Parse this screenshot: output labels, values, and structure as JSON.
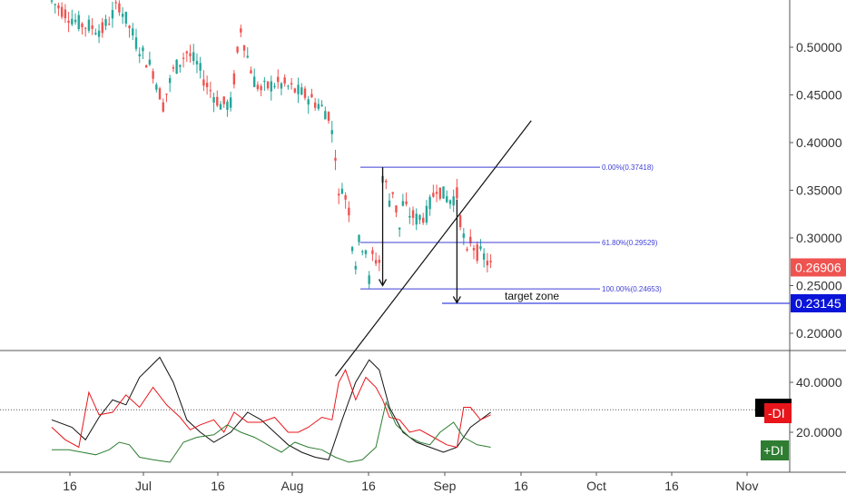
{
  "colors": {
    "up": "#26a69a",
    "down": "#ef5350",
    "fib": "#3f3fd6",
    "price_badge": "#ef5350",
    "target_badge": "#0a14d8",
    "plus_di": "#2e7d32",
    "minus_di": "#e8161b",
    "adx": "#111111",
    "grid_text": "#333333"
  },
  "chart_data": [
    {
      "type": "candlestick",
      "x_axis": {
        "ticks": [
          "16",
          "Jul",
          "16",
          "Aug",
          "16",
          "Sep",
          "16",
          "Oct",
          "16",
          "Nov"
        ]
      },
      "y_axis": {
        "ticks": [
          "0.50000",
          "0.45000",
          "0.40000",
          "0.35000",
          "0.30000",
          "0.25000",
          "0.20000"
        ],
        "ylim": [
          0.165,
          0.548
        ]
      },
      "last_price": "0.26906",
      "target_price": "0.23145",
      "fibonacci": [
        {
          "label": "0.00%(0.37418)",
          "value": 0.37418
        },
        {
          "label": "61.80%(0.29529)",
          "value": 0.29529
        },
        {
          "label": "100.00%(0.24653)",
          "value": 0.24653
        }
      ],
      "annotation": "target zone",
      "price_path": [
        [
          0,
          0.548
        ],
        [
          8,
          0.525
        ],
        [
          15,
          0.518
        ],
        [
          20,
          0.545
        ],
        [
          25,
          0.505
        ],
        [
          30,
          0.475
        ],
        [
          33,
          0.44
        ],
        [
          36,
          0.475
        ],
        [
          40,
          0.495
        ],
        [
          43,
          0.482
        ],
        [
          46,
          0.46
        ],
        [
          50,
          0.44
        ],
        [
          53,
          0.44
        ],
        [
          56,
          0.52
        ],
        [
          58,
          0.49
        ],
        [
          60,
          0.465
        ],
        [
          62,
          0.455
        ],
        [
          66,
          0.462
        ],
        [
          69,
          0.46
        ],
        [
          73,
          0.453
        ],
        [
          76,
          0.448
        ],
        [
          79,
          0.44
        ],
        [
          82,
          0.43
        ],
        [
          84,
          0.39
        ],
        [
          85,
          0.34
        ],
        [
          86,
          0.355
        ],
        [
          88,
          0.33
        ],
        [
          89,
          0.295
        ],
        [
          90,
          0.275
        ],
        [
          91,
          0.295
        ],
        [
          93,
          0.29
        ],
        [
          94,
          0.255
        ],
        [
          95,
          0.28
        ],
        [
          97,
          0.275
        ],
        [
          98,
          0.365
        ],
        [
          99,
          0.355
        ],
        [
          100,
          0.34
        ],
        [
          101,
          0.35
        ],
        [
          102,
          0.33
        ],
        [
          103,
          0.31
        ],
        [
          104,
          0.335
        ],
        [
          106,
          0.325
        ],
        [
          108,
          0.32
        ],
        [
          111,
          0.325
        ],
        [
          114,
          0.355
        ],
        [
          116,
          0.345
        ],
        [
          118,
          0.34
        ],
        [
          120,
          0.345
        ],
        [
          121,
          0.32
        ],
        [
          122,
          0.3
        ],
        [
          123,
          0.28
        ],
        [
          124,
          0.298
        ],
        [
          126,
          0.285
        ],
        [
          128,
          0.28
        ],
        [
          130,
          0.27
        ]
      ],
      "trendline": {
        "from": [
          84,
          0.155
        ],
        "to": [
          142,
          0.423
        ]
      },
      "arrows": [
        {
          "x": 98,
          "from": 0.374,
          "to": 0.25
        },
        {
          "x": 120,
          "from": 0.34,
          "to": 0.232
        }
      ]
    },
    {
      "type": "line",
      "y_axis": {
        "ticks": [
          "40.0000",
          "20.0000"
        ],
        "ylim": [
          3,
          52
        ]
      },
      "reference_value": 29,
      "legend": [
        "-DI",
        "+DI"
      ],
      "series": [
        {
          "name": "ADX",
          "values": [
            [
              0,
              25
            ],
            [
              6,
              22
            ],
            [
              10,
              17
            ],
            [
              14,
              26
            ],
            [
              18,
              33
            ],
            [
              22,
              31
            ],
            [
              26,
              42
            ],
            [
              32,
              50
            ],
            [
              36,
              40
            ],
            [
              40,
              25
            ],
            [
              44,
              20
            ],
            [
              48,
              16
            ],
            [
              53,
              20
            ],
            [
              58,
              28
            ],
            [
              62,
              25
            ],
            [
              66,
              20
            ],
            [
              70,
              15
            ],
            [
              74,
              12
            ],
            [
              78,
              10
            ],
            [
              82,
              9
            ],
            [
              86,
              25
            ],
            [
              90,
              40
            ],
            [
              94,
              49
            ],
            [
              97,
              45
            ],
            [
              100,
              30
            ],
            [
              104,
              20
            ],
            [
              108,
              16
            ],
            [
              112,
              14
            ],
            [
              116,
              12
            ],
            [
              120,
              14
            ],
            [
              124,
              22
            ],
            [
              130,
              28
            ]
          ]
        },
        {
          "name": "-DI",
          "values": [
            [
              0,
              22
            ],
            [
              4,
              17
            ],
            [
              8,
              14
            ],
            [
              11,
              36
            ],
            [
              14,
              27
            ],
            [
              18,
              28
            ],
            [
              22,
              35
            ],
            [
              26,
              30
            ],
            [
              30,
              38
            ],
            [
              34,
              31
            ],
            [
              38,
              26
            ],
            [
              41,
              21
            ],
            [
              44,
              23
            ],
            [
              48,
              25
            ],
            [
              51,
              20
            ],
            [
              54,
              28
            ],
            [
              58,
              24
            ],
            [
              62,
              24
            ],
            [
              66,
              26
            ],
            [
              70,
              20
            ],
            [
              73,
              20
            ],
            [
              76,
              22
            ],
            [
              80,
              26
            ],
            [
              83,
              25
            ],
            [
              85,
              40
            ],
            [
              87,
              45
            ],
            [
              90,
              33
            ],
            [
              93,
              42
            ],
            [
              96,
              38
            ],
            [
              98,
              33
            ],
            [
              100,
              26
            ],
            [
              103,
              25
            ],
            [
              106,
              20
            ],
            [
              109,
              21
            ],
            [
              113,
              18
            ],
            [
              117,
              15
            ],
            [
              120,
              14
            ],
            [
              122,
              30
            ],
            [
              124,
              30
            ],
            [
              127,
              25
            ],
            [
              130,
              27
            ]
          ]
        },
        {
          "name": "+DI",
          "values": [
            [
              0,
              13
            ],
            [
              5,
              13
            ],
            [
              9,
              12
            ],
            [
              13,
              11
            ],
            [
              17,
              13
            ],
            [
              20,
              16
            ],
            [
              23,
              15
            ],
            [
              26,
              10
            ],
            [
              30,
              9
            ],
            [
              35,
              8
            ],
            [
              39,
              16
            ],
            [
              43,
              18
            ],
            [
              48,
              19
            ],
            [
              52,
              23
            ],
            [
              56,
              20
            ],
            [
              60,
              18
            ],
            [
              64,
              15
            ],
            [
              68,
              12
            ],
            [
              72,
              16
            ],
            [
              76,
              14
            ],
            [
              80,
              13
            ],
            [
              84,
              10
            ],
            [
              88,
              8
            ],
            [
              92,
              9
            ],
            [
              96,
              14
            ],
            [
              99,
              32
            ],
            [
              102,
              23
            ],
            [
              106,
              18
            ],
            [
              109,
              16
            ],
            [
              112,
              15
            ],
            [
              115,
              20
            ],
            [
              119,
              24
            ],
            [
              122,
              18
            ],
            [
              126,
              15
            ],
            [
              130,
              14
            ]
          ]
        }
      ]
    }
  ]
}
